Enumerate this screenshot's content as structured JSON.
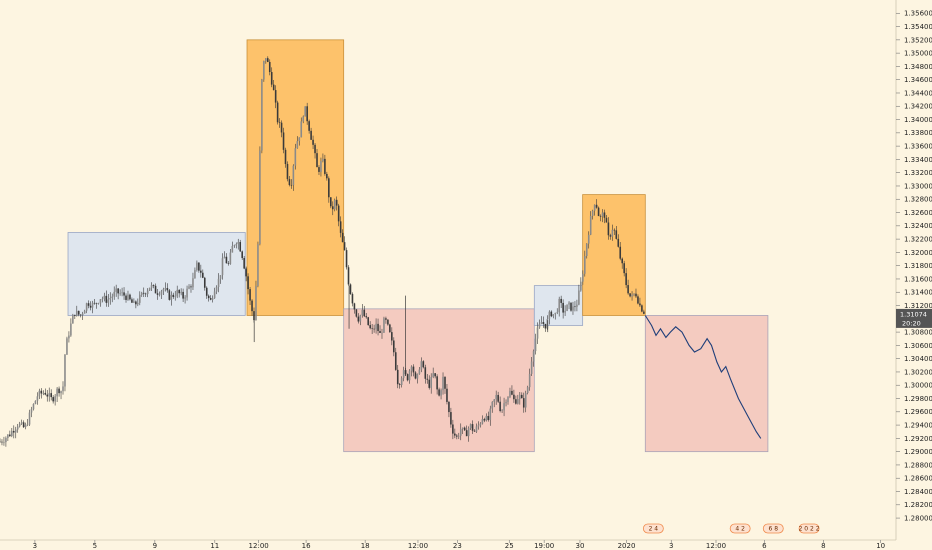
{
  "chart_data": {
    "type": "candlestick",
    "title": "",
    "colors": {
      "background": "#fdf5e1",
      "candles": "#3a3a3a",
      "box_blue": "#dce4ef",
      "box_orange": "#fdbd5e",
      "box_red": "#f3c6bd",
      "projection_line": "#1f3f7a",
      "price_tag": "#555555",
      "event_badge": "#f08a4b"
    },
    "y_axis": {
      "position": "right",
      "range": [
        1.277,
        1.358
      ],
      "ticks": [
        "1.35600",
        "1.35400",
        "1.35200",
        "1.35000",
        "1.34800",
        "1.34600",
        "1.34400",
        "1.34200",
        "1.34000",
        "1.33800",
        "1.33600",
        "1.33400",
        "1.33200",
        "1.33000",
        "1.32800",
        "1.32600",
        "1.32400",
        "1.32200",
        "1.32000",
        "1.31800",
        "1.31600",
        "1.31400",
        "1.31200",
        "1.30800",
        "1.30600",
        "1.30400",
        "1.30200",
        "1.30000",
        "1.29800",
        "1.29600",
        "1.29400",
        "1.29200",
        "1.29000",
        "1.28800",
        "1.28600",
        "1.28400",
        "1.28200",
        "1.28000"
      ],
      "tick_values": [
        1.356,
        1.354,
        1.352,
        1.35,
        1.348,
        1.346,
        1.344,
        1.342,
        1.34,
        1.338,
        1.336,
        1.334,
        1.332,
        1.33,
        1.328,
        1.326,
        1.324,
        1.322,
        1.32,
        1.318,
        1.316,
        1.314,
        1.312,
        1.308,
        1.306,
        1.304,
        1.302,
        1.3,
        1.298,
        1.296,
        1.294,
        1.292,
        1.29,
        1.288,
        1.286,
        1.284,
        1.282,
        1.28
      ],
      "last_price": "1.31074",
      "last_price_value": 1.31074,
      "countdown": "20:20"
    },
    "x_axis": {
      "range": [
        0,
        100
      ],
      "labels": [
        "3",
        "5",
        "9",
        "11",
        "12:00",
        "16",
        "18",
        "12:00",
        "23",
        "25",
        "19:00",
        "30",
        "2020",
        "3",
        "12:00",
        "6",
        "8",
        "10"
      ],
      "label_positions": [
        3.9,
        10.6,
        17.3,
        24.0,
        28.9,
        34.2,
        40.8,
        46.7,
        51.1,
        56.9,
        60.8,
        64.8,
        70.0,
        75.0,
        80.0,
        85.4,
        92.0,
        98.4
      ]
    },
    "price_path": [
      [
        0.0,
        1.2915
      ],
      [
        1.0,
        1.2925
      ],
      [
        2.0,
        1.2942
      ],
      [
        2.8,
        1.2935
      ],
      [
        3.5,
        1.2962
      ],
      [
        4.2,
        1.2985
      ],
      [
        5.0,
        1.299
      ],
      [
        5.8,
        1.2978
      ],
      [
        6.5,
        1.2995
      ],
      [
        7.0,
        1.299
      ],
      [
        7.3,
        1.3055
      ],
      [
        7.8,
        1.3085
      ],
      [
        8.3,
        1.311
      ],
      [
        9.0,
        1.3105
      ],
      [
        9.8,
        1.3125
      ],
      [
        10.5,
        1.312
      ],
      [
        11.2,
        1.3132
      ],
      [
        12.0,
        1.3128
      ],
      [
        13.0,
        1.314
      ],
      [
        14.0,
        1.3135
      ],
      [
        15.0,
        1.312
      ],
      [
        16.0,
        1.3138
      ],
      [
        16.8,
        1.315
      ],
      [
        17.5,
        1.314
      ],
      [
        18.3,
        1.3145
      ],
      [
        19.0,
        1.3132
      ],
      [
        19.8,
        1.314
      ],
      [
        20.5,
        1.3132
      ],
      [
        21.0,
        1.3145
      ],
      [
        21.5,
        1.3155
      ],
      [
        22.0,
        1.318
      ],
      [
        22.5,
        1.317
      ],
      [
        23.0,
        1.314
      ],
      [
        23.5,
        1.3125
      ],
      [
        24.0,
        1.3148
      ],
      [
        24.5,
        1.316
      ],
      [
        25.0,
        1.3195
      ],
      [
        25.5,
        1.318
      ],
      [
        26.0,
        1.321
      ],
      [
        26.5,
        1.322
      ],
      [
        27.0,
        1.32
      ],
      [
        27.5,
        1.3165
      ],
      [
        28.0,
        1.312
      ],
      [
        28.4,
        1.31
      ],
      [
        28.8,
        1.32
      ],
      [
        29.2,
        1.345
      ],
      [
        29.6,
        1.35
      ],
      [
        30.0,
        1.348
      ],
      [
        30.5,
        1.345
      ],
      [
        31.0,
        1.34
      ],
      [
        31.5,
        1.338
      ],
      [
        32.0,
        1.332
      ],
      [
        32.5,
        1.33
      ],
      [
        33.0,
        1.336
      ],
      [
        33.5,
        1.338
      ],
      [
        34.0,
        1.342
      ],
      [
        34.5,
        1.339
      ],
      [
        35.0,
        1.336
      ],
      [
        35.5,
        1.332
      ],
      [
        36.0,
        1.334
      ],
      [
        36.5,
        1.331
      ],
      [
        37.0,
        1.326
      ],
      [
        37.5,
        1.328
      ],
      [
        38.0,
        1.323
      ],
      [
        38.5,
        1.32
      ],
      [
        39.0,
        1.315
      ],
      [
        39.5,
        1.312
      ],
      [
        40.0,
        1.31
      ],
      [
        40.5,
        1.311
      ],
      [
        41.0,
        1.3095
      ],
      [
        41.5,
        1.308
      ],
      [
        42.0,
        1.309
      ],
      [
        42.5,
        1.3075
      ],
      [
        43.0,
        1.31
      ],
      [
        43.5,
        1.308
      ],
      [
        44.0,
        1.305
      ],
      [
        44.5,
        1.3
      ],
      [
        45.0,
        1.302
      ],
      [
        45.5,
        1.301
      ],
      [
        46.0,
        1.3035
      ],
      [
        46.5,
        1.3
      ],
      [
        47.0,
        1.304
      ],
      [
        47.5,
        1.301
      ],
      [
        48.0,
        1.3
      ],
      [
        48.5,
        1.302
      ],
      [
        49.0,
        1.298
      ],
      [
        49.5,
        1.301
      ],
      [
        50.0,
        1.297
      ],
      [
        50.5,
        1.2935
      ],
      [
        51.0,
        1.292
      ],
      [
        51.5,
        1.2935
      ],
      [
        52.0,
        1.2925
      ],
      [
        52.5,
        1.294
      ],
      [
        53.0,
        1.293
      ],
      [
        53.5,
        1.294
      ],
      [
        54.0,
        1.2955
      ],
      [
        54.5,
        1.2945
      ],
      [
        55.0,
        1.297
      ],
      [
        55.5,
        1.2985
      ],
      [
        56.0,
        1.296
      ],
      [
        56.5,
        1.298
      ],
      [
        57.0,
        1.299
      ],
      [
        57.5,
        1.2975
      ],
      [
        58.0,
        1.2985
      ],
      [
        58.5,
        1.297
      ],
      [
        59.0,
        1.3
      ],
      [
        59.5,
        1.305
      ],
      [
        60.0,
        1.308
      ],
      [
        60.5,
        1.3095
      ],
      [
        61.0,
        1.309
      ],
      [
        61.5,
        1.311
      ],
      [
        62.0,
        1.3105
      ],
      [
        62.5,
        1.3125
      ],
      [
        63.0,
        1.311
      ],
      [
        63.5,
        1.312
      ],
      [
        64.0,
        1.3115
      ],
      [
        64.5,
        1.3125
      ],
      [
        65.0,
        1.316
      ],
      [
        65.5,
        1.321
      ],
      [
        66.0,
        1.325
      ],
      [
        66.5,
        1.328
      ],
      [
        67.0,
        1.325
      ],
      [
        67.5,
        1.326
      ],
      [
        68.0,
        1.322
      ],
      [
        68.5,
        1.324
      ],
      [
        69.0,
        1.321
      ],
      [
        69.5,
        1.318
      ],
      [
        70.0,
        1.315
      ],
      [
        70.5,
        1.313
      ],
      [
        71.0,
        1.314
      ],
      [
        71.5,
        1.312
      ],
      [
        72.0,
        1.311
      ]
    ],
    "annotations": {
      "boxes": [
        {
          "color": "blue",
          "x": [
            7.6,
            27.4
          ],
          "y": [
            1.3105,
            1.323
          ]
        },
        {
          "color": "orange",
          "x": [
            27.6,
            38.4
          ],
          "y": [
            1.3105,
            1.352
          ]
        },
        {
          "color": "red",
          "x": [
            38.4,
            59.7
          ],
          "y": [
            1.29,
            1.3115
          ]
        },
        {
          "color": "blue",
          "x": [
            59.7,
            65.1
          ],
          "y": [
            1.309,
            1.315
          ]
        },
        {
          "color": "orange",
          "x": [
            65.1,
            72.1
          ],
          "y": [
            1.3105,
            1.3287
          ]
        },
        {
          "color": "red",
          "x": [
            72.1,
            85.8
          ],
          "y": [
            1.29,
            1.3105
          ]
        }
      ],
      "projection": [
        [
          72.1,
          1.3105
        ],
        [
          72.8,
          1.309
        ],
        [
          73.3,
          1.3075
        ],
        [
          73.8,
          1.3085
        ],
        [
          74.4,
          1.3072
        ],
        [
          74.9,
          1.308
        ],
        [
          75.5,
          1.3088
        ],
        [
          76.2,
          1.308
        ],
        [
          77.0,
          1.306
        ],
        [
          77.6,
          1.305
        ],
        [
          78.3,
          1.3055
        ],
        [
          79.0,
          1.307
        ],
        [
          79.5,
          1.306
        ],
        [
          80.1,
          1.3035
        ],
        [
          80.6,
          1.302
        ],
        [
          81.1,
          1.3028
        ],
        [
          81.6,
          1.301
        ],
        [
          82.5,
          1.298
        ],
        [
          83.5,
          1.2955
        ],
        [
          84.5,
          1.293
        ],
        [
          85.0,
          1.292
        ]
      ]
    },
    "events": [
      {
        "label": "2  4",
        "x": 73.0
      },
      {
        "label": "4  2",
        "x": 82.7
      },
      {
        "label": "6  8",
        "x": 86.4
      },
      {
        "label": "2 0 2  2",
        "x": 90.4
      }
    ]
  }
}
